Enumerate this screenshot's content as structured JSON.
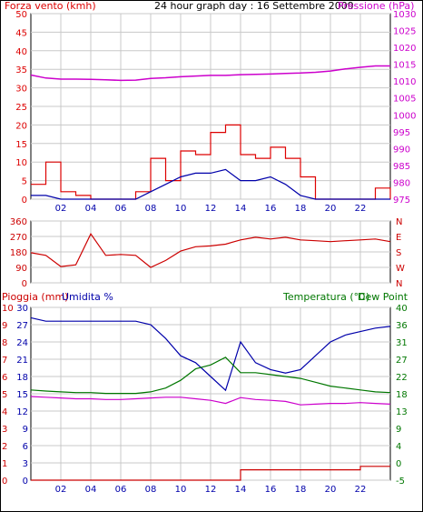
{
  "colors": {
    "wind": "#dd0000",
    "wind_avg": "#0000aa",
    "pressure": "#cc00cc",
    "direction": "#cc0000",
    "humidity": "#0000aa",
    "temperature": "#007700",
    "dew_point": "#cc00cc",
    "rain": "#cc0000",
    "grid": "#c8c8c8",
    "axis_blue": "#0000aa"
  },
  "x_ticks": [
    "02",
    "04",
    "06",
    "08",
    "10",
    "12",
    "14",
    "16",
    "18",
    "20",
    "22"
  ],
  "chart_data": [
    {
      "type": "line",
      "title": "24 hour graph day : 16 Settembre 2009",
      "ylabel": "Forza vento (kmh)",
      "y2label": "Pressione (hPa)",
      "ylim": [
        0,
        50
      ],
      "y2lim": [
        975,
        1030
      ],
      "yticks": [
        "0",
        "5",
        "10",
        "15",
        "20",
        "25",
        "30",
        "35",
        "40",
        "45",
        "50"
      ],
      "y2ticks": [
        "975",
        "980",
        "985",
        "990",
        "995",
        "1000",
        "1005",
        "1010",
        "1015",
        "1020",
        "1025",
        "1030"
      ],
      "x": [
        0,
        1,
        2,
        3,
        4,
        5,
        6,
        7,
        8,
        9,
        10,
        11,
        12,
        13,
        14,
        15,
        16,
        17,
        18,
        19,
        20,
        21,
        22,
        23,
        24
      ],
      "series": [
        {
          "name": "Forza vento",
          "values": [
            4,
            10,
            2,
            1,
            0,
            0,
            0,
            2,
            11,
            5,
            13,
            12,
            18,
            20,
            12,
            11,
            14,
            11,
            6,
            0,
            0,
            0,
            0,
            3,
            0
          ]
        },
        {
          "name": "",
          "values": [
            1,
            1,
            0,
            0,
            0,
            0,
            0,
            0,
            2,
            4,
            6,
            7,
            7,
            8,
            5,
            5,
            6,
            4,
            1,
            0,
            0,
            0,
            0,
            0,
            0
          ]
        },
        {
          "name": "Pressione",
          "values": [
            1011.8,
            1010.9,
            1010.6,
            1010.6,
            1010.5,
            1010.4,
            1010.2,
            1010.3,
            1010.8,
            1011.0,
            1011.3,
            1011.5,
            1011.7,
            1011.7,
            1011.9,
            1012.0,
            1012.1,
            1012.3,
            1012.4,
            1012.6,
            1013.0,
            1013.6,
            1014.1,
            1014.5,
            1014.5
          ]
        }
      ]
    },
    {
      "type": "line",
      "yticks": [
        "0",
        "90",
        "180",
        "270",
        "360"
      ],
      "y2ticks": [
        "N",
        "W",
        "S",
        "E",
        "N"
      ],
      "ylim": [
        0,
        360
      ],
      "x": [
        0,
        1,
        2,
        3,
        4,
        5,
        6,
        7,
        8,
        9,
        10,
        11,
        12,
        13,
        14,
        15,
        16,
        17,
        18,
        19,
        20,
        21,
        22,
        23,
        24
      ],
      "series": [
        {
          "name": "",
          "values": [
            175,
            160,
            95,
            105,
            285,
            160,
            165,
            160,
            90,
            130,
            185,
            210,
            215,
            225,
            250,
            265,
            255,
            265,
            250,
            245,
            240,
            245,
            250,
            255,
            240
          ]
        }
      ]
    },
    {
      "type": "line",
      "ylabel": "Pioggia (mm)",
      "ylabel2": "Umidita %",
      "y2label": "Temperatura (°C)",
      "y2label2": "Dew Point",
      "ylim_rain": [
        0,
        10
      ],
      "ylim_hum": [
        0,
        100
      ],
      "ylim_temp": [
        -5,
        40
      ],
      "rain_ticks": [
        "0",
        "1",
        "2",
        "3",
        "4",
        "5",
        "6",
        "7",
        "8",
        "9",
        "10"
      ],
      "hum_ticks": [
        "0",
        "3",
        "6",
        "9",
        "12",
        "15",
        "18",
        "21",
        "24",
        "27",
        "30"
      ],
      "temp_ticks": [
        "-5",
        "0",
        "4",
        "9",
        "13",
        "18",
        "22",
        "27",
        "31",
        "36",
        "40"
      ],
      "x": [
        0,
        1,
        2,
        3,
        4,
        5,
        6,
        7,
        8,
        9,
        10,
        11,
        12,
        13,
        14,
        15,
        16,
        17,
        18,
        19,
        20,
        21,
        22,
        23,
        24
      ],
      "series": [
        {
          "name": "Umidita %",
          "values": [
            94,
            92,
            92,
            92,
            92,
            92,
            92,
            92,
            90,
            82,
            72,
            68,
            60,
            52,
            80,
            68,
            64,
            62,
            64,
            72,
            80,
            84,
            86,
            88,
            89
          ]
        },
        {
          "name": "Temperatura (°C)",
          "values": [
            18.5,
            18.2,
            18.0,
            17.8,
            17.8,
            17.6,
            17.6,
            17.6,
            18.0,
            19.0,
            21.0,
            24.0,
            25.0,
            27.0,
            23.0,
            23.0,
            22.5,
            22.0,
            21.5,
            20.5,
            19.5,
            19.0,
            18.5,
            18.0,
            17.8
          ]
        },
        {
          "name": "Dew Point",
          "values": [
            16.8,
            16.6,
            16.4,
            16.2,
            16.2,
            16.0,
            16.0,
            16.2,
            16.4,
            16.6,
            16.6,
            16.2,
            15.8,
            15.0,
            16.5,
            16.0,
            15.8,
            15.5,
            14.6,
            14.8,
            15.0,
            15.0,
            15.2,
            15.0,
            14.8
          ]
        },
        {
          "name": "Pioggia (mm)",
          "values": [
            0,
            0,
            0,
            0,
            0,
            0,
            0,
            0,
            0,
            0,
            0,
            0,
            0,
            0,
            0.6,
            0.6,
            0.6,
            0.6,
            0.6,
            0.6,
            0.6,
            0.6,
            0.8,
            0.8,
            0.8
          ]
        }
      ]
    }
  ]
}
